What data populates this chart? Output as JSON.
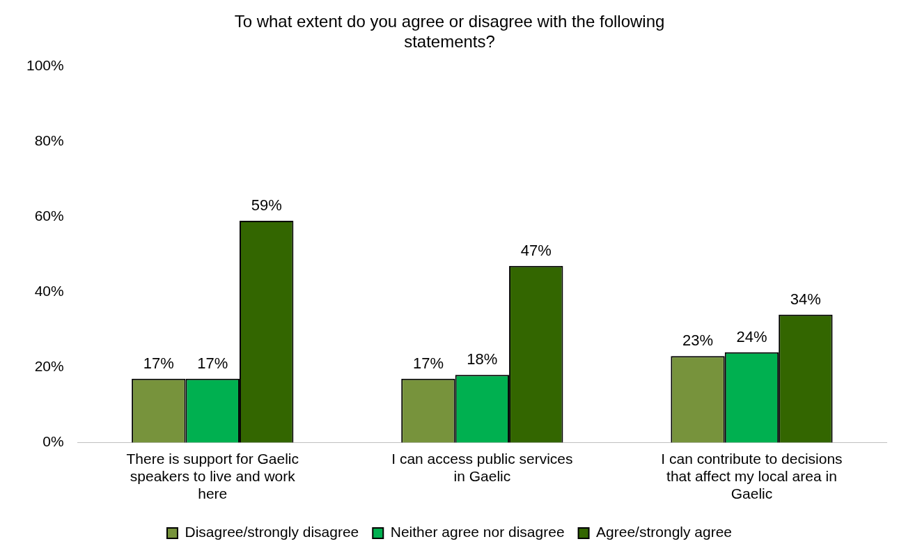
{
  "chart_data": {
    "type": "bar",
    "title": "To what extent do you agree or disagree with the following statements?",
    "categories": [
      "There is support for Gaelic speakers to live and work here",
      "I can access public services in Gaelic",
      "I can contribute to decisions that affect my local area in Gaelic"
    ],
    "series": [
      {
        "name": "Disagree/strongly disagree",
        "color": "#77933c",
        "values": [
          17,
          17,
          23
        ],
        "value_labels": [
          "17%",
          "17%",
          "23%"
        ]
      },
      {
        "name": "Neither agree nor disagree",
        "color": "#00b050",
        "values": [
          17,
          18,
          24
        ],
        "value_labels": [
          "17%",
          "18%",
          "24%"
        ]
      },
      {
        "name": "Agree/strongly agree",
        "color": "#336600",
        "values": [
          59,
          47,
          34
        ],
        "value_labels": [
          "59%",
          "47%",
          "34%"
        ]
      }
    ],
    "ylim": [
      0,
      100
    ],
    "yticks": [
      {
        "value": 0,
        "label": "0%"
      },
      {
        "value": 20,
        "label": "20%"
      },
      {
        "value": 40,
        "label": "40%"
      },
      {
        "value": 60,
        "label": "60%"
      },
      {
        "value": 80,
        "label": "80%"
      },
      {
        "value": 100,
        "label": "100%"
      }
    ],
    "grid": false,
    "legend": "bottom"
  }
}
